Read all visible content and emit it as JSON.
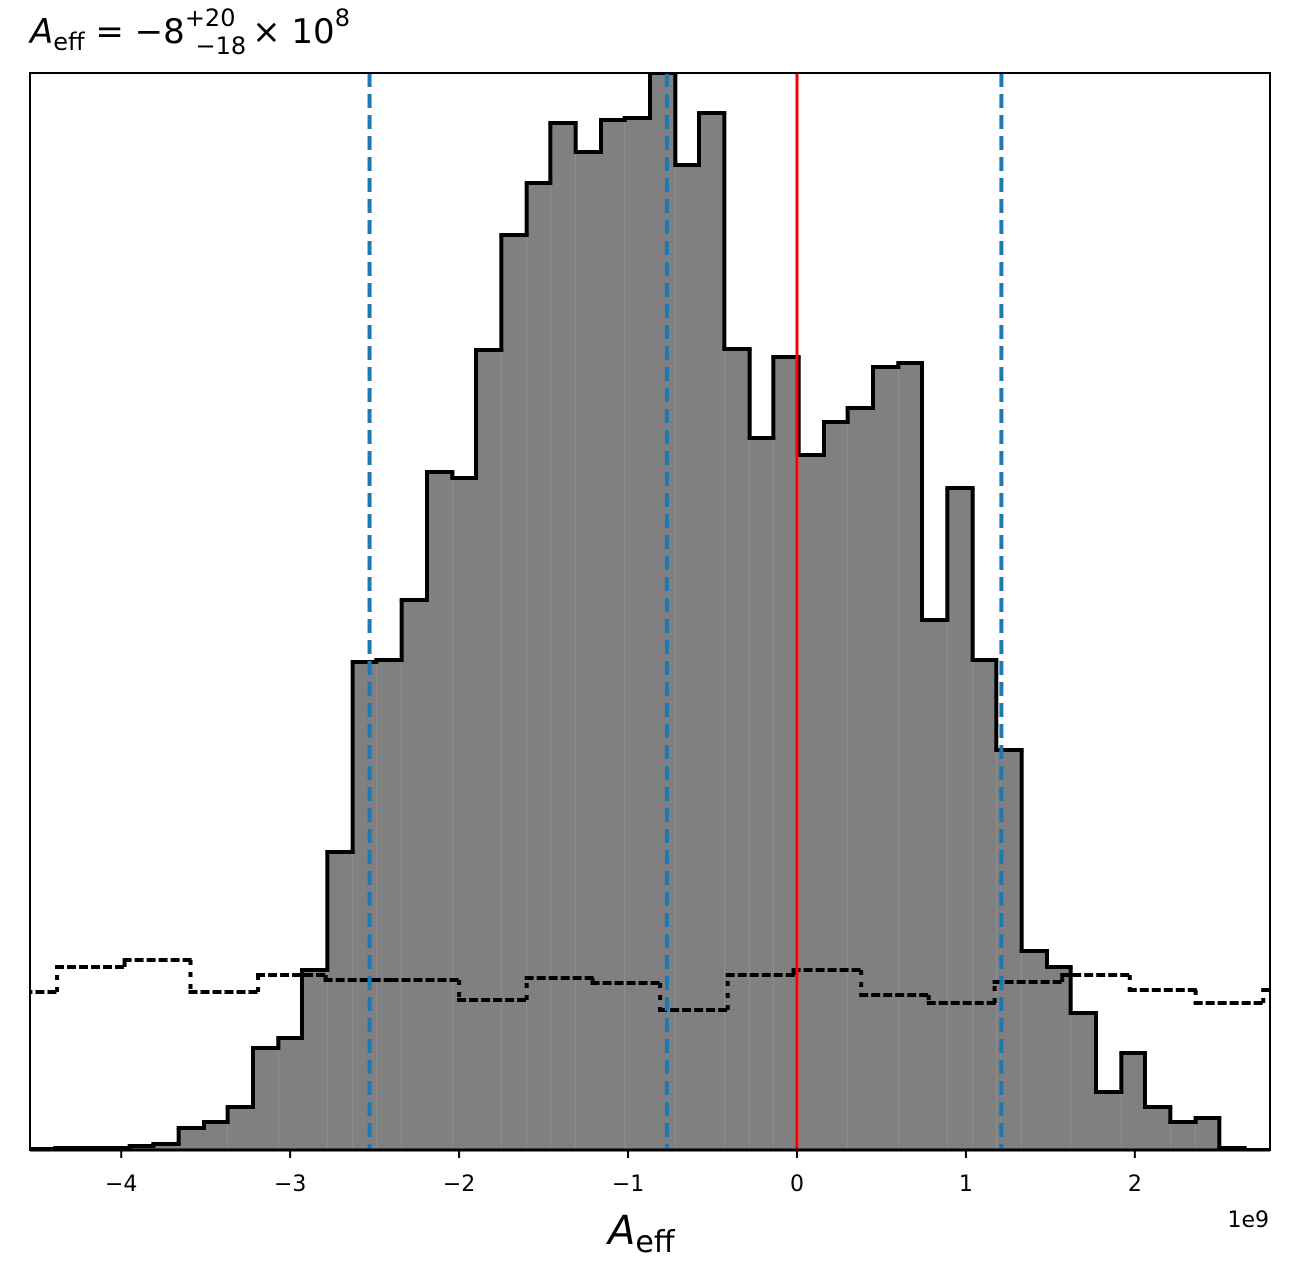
{
  "chart_data": {
    "type": "histogram",
    "title": {
      "symbol": "A",
      "subscript": "eff",
      "equals": " = −8",
      "sup": "+20",
      "sub": "−18",
      "times": "× 10",
      "exp": "8"
    },
    "xlabel": {
      "symbol": "A",
      "subscript": "eff"
    },
    "x_offset_label": "1e9",
    "bins": [
      -4.54,
      -4.39,
      -4.25,
      -4.1,
      -3.95,
      -3.81,
      -3.66,
      -3.51,
      -3.37,
      -3.22,
      -3.07,
      -2.93,
      -2.78,
      -2.63,
      -2.49,
      -2.34,
      -2.19,
      -2.04,
      -1.9,
      -1.75,
      -1.6,
      -1.46,
      -1.31,
      -1.16,
      -1.02,
      -0.87,
      -0.72,
      -0.58,
      -0.43,
      -0.28,
      -0.14,
      0.01,
      0.16,
      0.3,
      0.45,
      0.6,
      0.74,
      0.89,
      1.04,
      1.18,
      1.33,
      1.48,
      1.62,
      1.77,
      1.92,
      2.06,
      2.21,
      2.36,
      2.5,
      2.65,
      2.8
    ],
    "values": [
      1,
      2,
      2,
      2,
      4,
      6,
      22,
      28,
      43,
      102,
      112,
      180,
      298,
      488,
      490,
      550,
      678,
      672,
      800,
      915,
      967,
      1027,
      998,
      1030,
      1032,
      1077,
      985,
      1037,
      801,
      712,
      793,
      695,
      728,
      742,
      783,
      787,
      530,
      662,
      490,
      400,
      199,
      183,
      137,
      58,
      97,
      43,
      28,
      32,
      2,
      0
    ],
    "color": "#808080",
    "edge_color": "#000000",
    "prior": {
      "bins": [
        -4.78,
        -4.38,
        -3.98,
        -3.59,
        -3.19,
        -2.79,
        -2.4,
        -2.0,
        -1.6,
        -1.21,
        -0.81,
        -0.41,
        -0.02,
        0.38,
        0.78,
        1.17,
        1.57,
        1.97,
        2.36,
        2.76,
        3.16
      ],
      "values": [
        158,
        183,
        190,
        158,
        175,
        170,
        170,
        150,
        172,
        167,
        140,
        175,
        180,
        155,
        147,
        168,
        175,
        160,
        147,
        160
      ],
      "color": "#000000",
      "style": "dotted"
    },
    "lines": [
      {
        "x": -2.53,
        "color": "#1f77b4",
        "style": "dashed"
      },
      {
        "x": -0.77,
        "color": "#1f77b4",
        "style": "dashed"
      },
      {
        "x": 1.21,
        "color": "#1f77b4",
        "style": "dashed"
      },
      {
        "x": 0,
        "color": "#ff0000",
        "style": "solid"
      }
    ],
    "xlim": [
      -4.54,
      2.8
    ],
    "ylim": [
      0,
      1077
    ],
    "xticks": [
      {
        "value": -4,
        "label": "−4"
      },
      {
        "value": -3,
        "label": "−3"
      },
      {
        "value": -2,
        "label": "−2"
      },
      {
        "value": -1,
        "label": "−1"
      },
      0,
      1,
      2
    ]
  }
}
